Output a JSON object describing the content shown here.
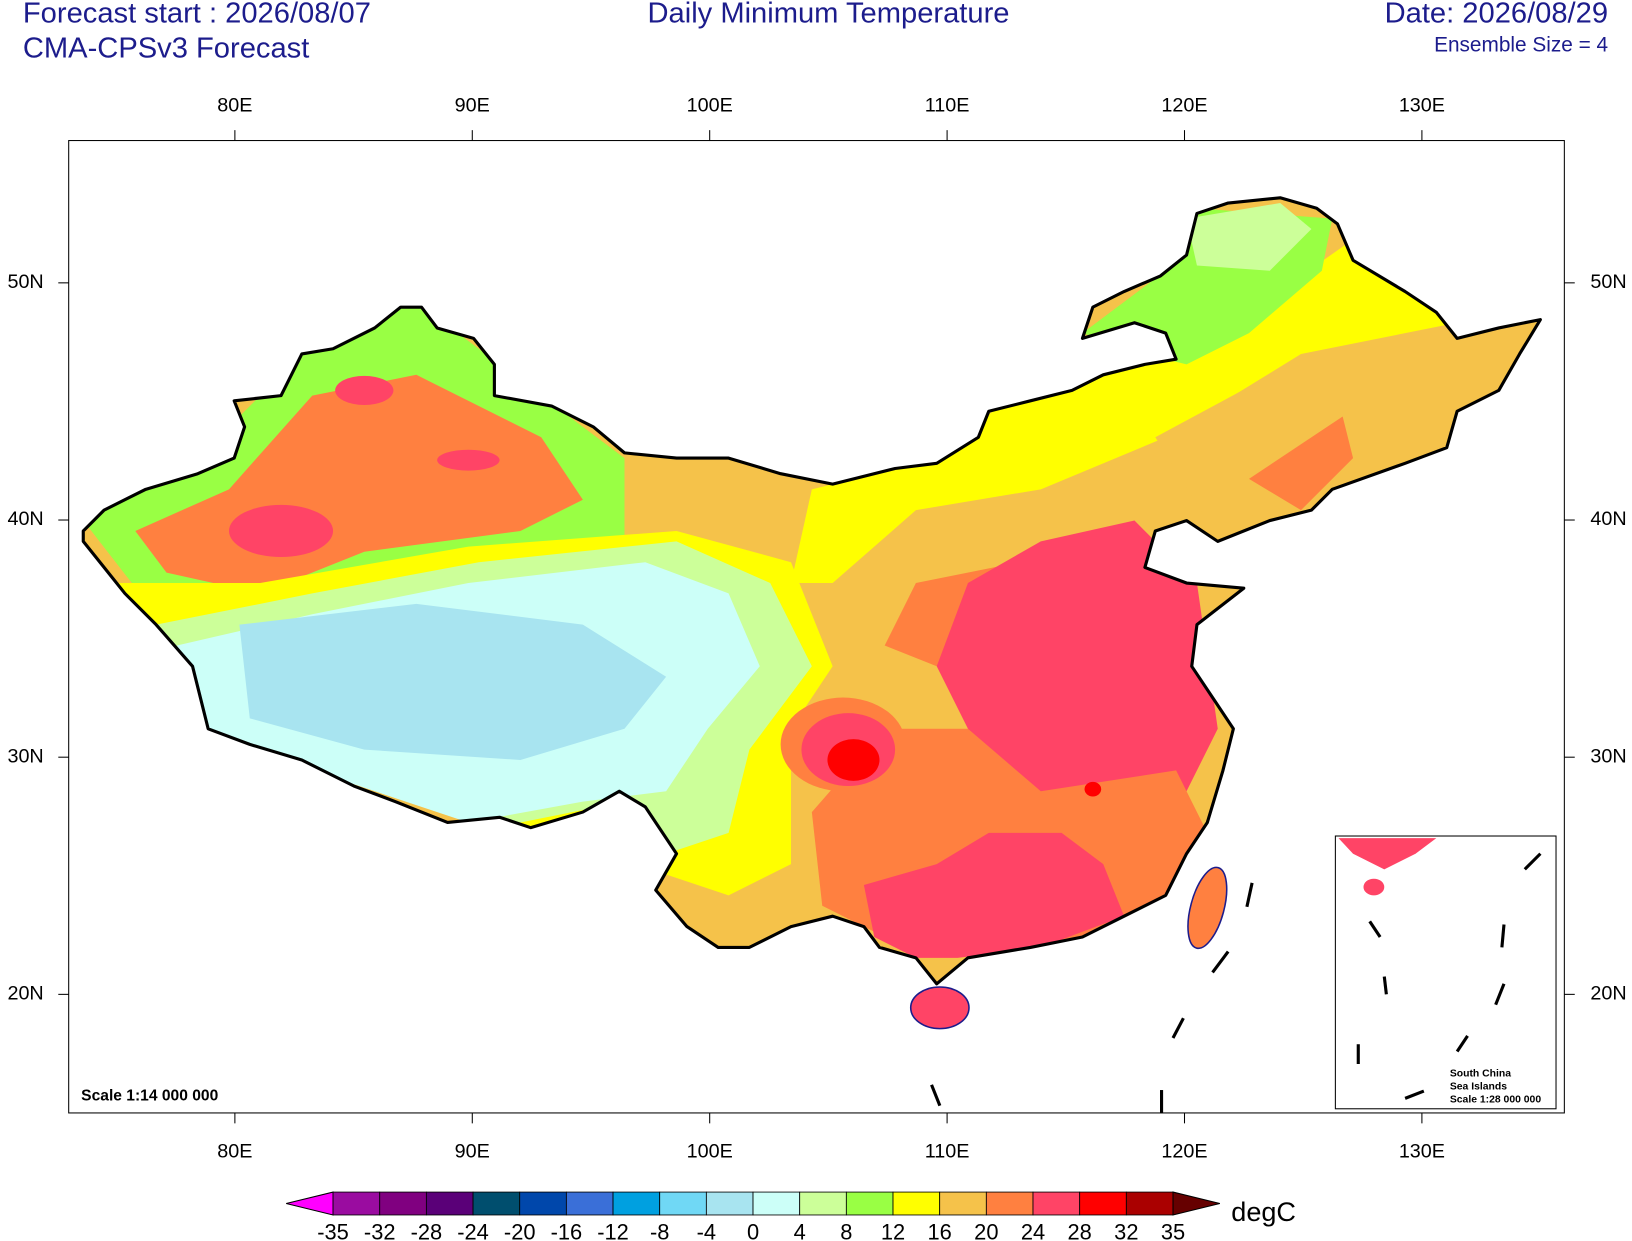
{
  "header": {
    "forecast_start": "Forecast start : 2026/08/07",
    "model": "CMA-CPSv3 Forecast",
    "title": "Daily Minimum Temperature",
    "date": "Date: 2026/08/29",
    "ensemble": "Ensemble Size = 4"
  },
  "map": {
    "lonlim": [
      73,
      136
    ],
    "latlim": [
      15,
      56
    ],
    "lon_ticks": [
      {
        "value": 80,
        "label": "80E"
      },
      {
        "value": 90,
        "label": "90E"
      },
      {
        "value": 100,
        "label": "100E"
      },
      {
        "value": 110,
        "label": "110E"
      },
      {
        "value": 120,
        "label": "120E"
      },
      {
        "value": 130,
        "label": "130E"
      }
    ],
    "lat_ticks": [
      {
        "value": 20,
        "label": "20N"
      },
      {
        "value": 30,
        "label": "30N"
      },
      {
        "value": 40,
        "label": "40N"
      },
      {
        "value": 50,
        "label": "50N"
      }
    ],
    "scale": "Scale 1:14 000 000"
  },
  "inset": {
    "lines": [
      "South China",
      "Sea Islands",
      "Scale 1:28 000 000"
    ]
  },
  "colorbar": {
    "levels": [
      -35,
      -32,
      -28,
      -24,
      -20,
      -16,
      -12,
      -8,
      -4,
      0,
      4,
      8,
      12,
      16,
      20,
      24,
      28,
      32,
      35
    ],
    "colors": [
      "#ff00ff",
      "#9a0ca0",
      "#800080",
      "#5a0078",
      "#004e6e",
      "#0047ab",
      "#3a6fd8",
      "#00a0e0",
      "#70d8f5",
      "#a8e4f0",
      "#ccfff8",
      "#ccff99",
      "#99ff44",
      "#ffff00",
      "#f5c24a",
      "#ff8040",
      "#ff4466",
      "#ff0000",
      "#aa0000",
      "#660000"
    ],
    "unit": "degC"
  }
}
